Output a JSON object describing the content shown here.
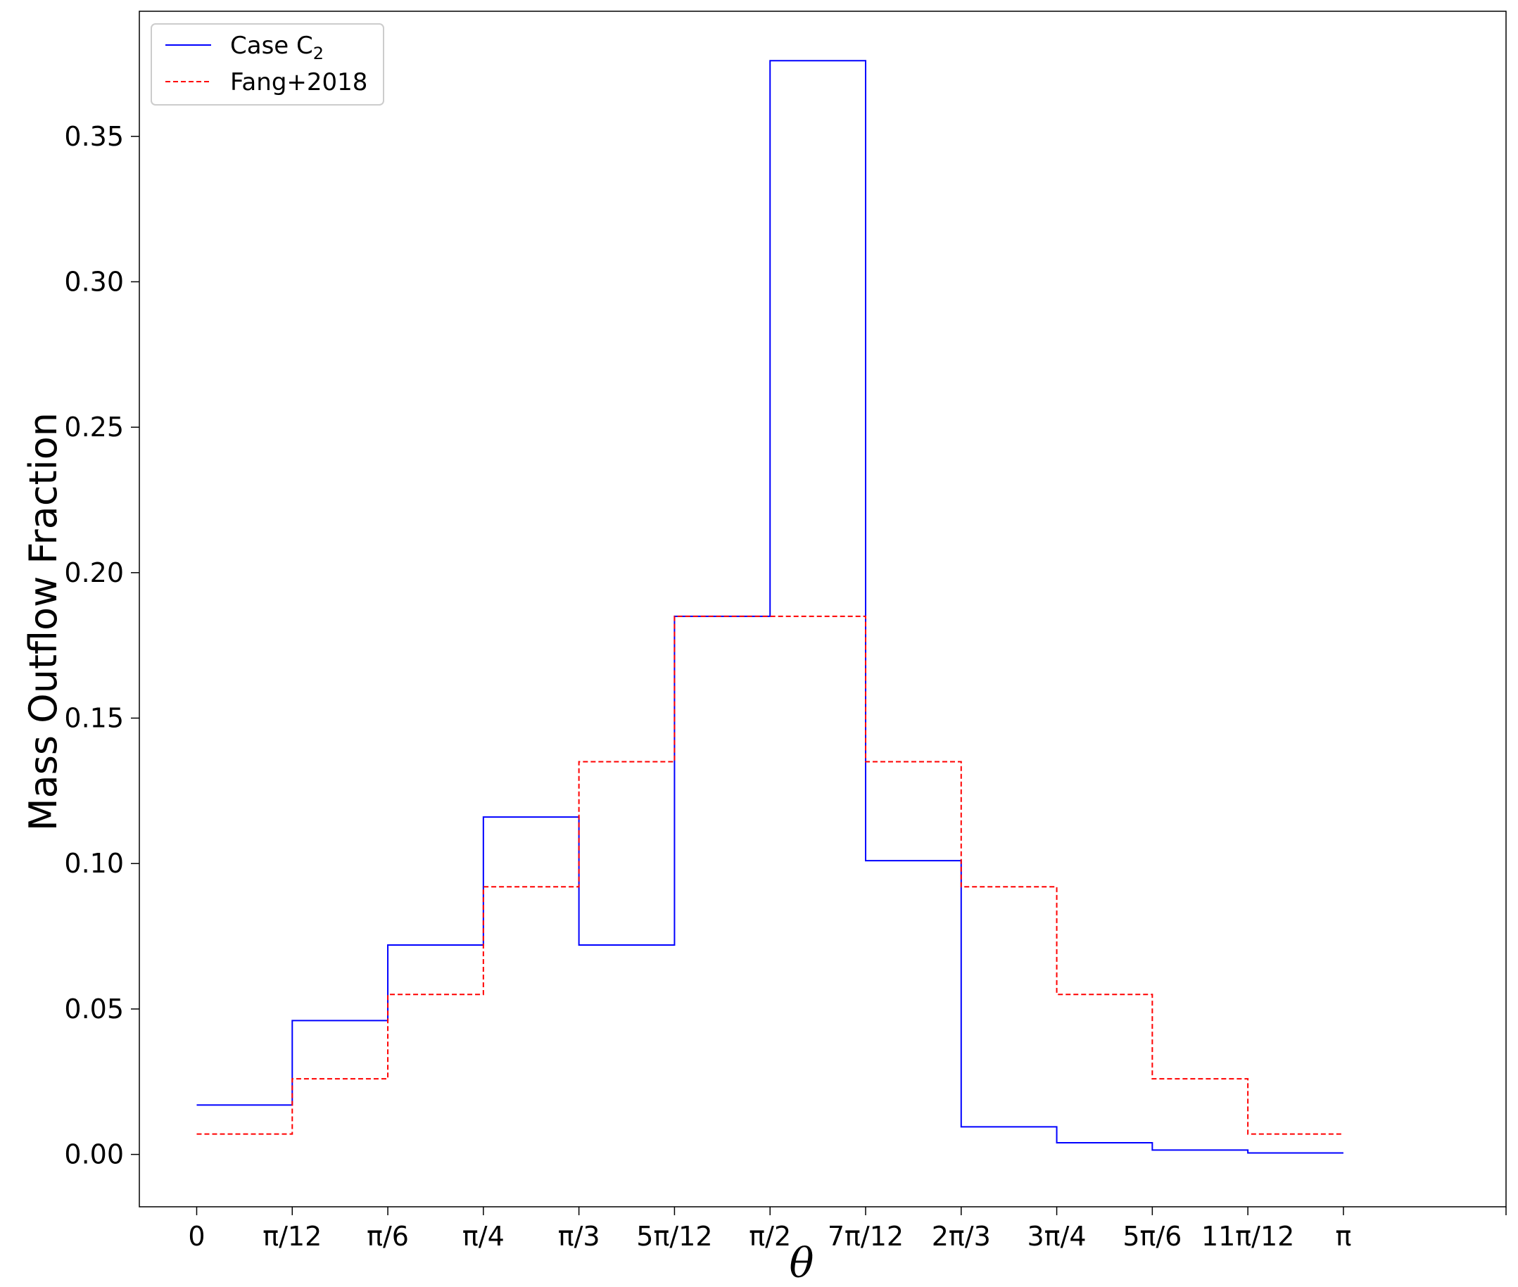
{
  "chart_data": {
    "type": "line",
    "step": "post",
    "xlabel": "θ",
    "ylabel": "Mass Outflow Fraction",
    "xlim": [
      -0.1571,
      3.5871
    ],
    "ylim": [
      -0.018,
      0.393
    ],
    "x_ticks": [
      {
        "value": 0.0,
        "label": "0"
      },
      {
        "value": 0.2618,
        "label": "π/12"
      },
      {
        "value": 0.5236,
        "label": "π/6"
      },
      {
        "value": 0.7854,
        "label": "π/4"
      },
      {
        "value": 1.0472,
        "label": "π/3"
      },
      {
        "value": 1.309,
        "label": "5π/12"
      },
      {
        "value": 1.5708,
        "label": "π/2"
      },
      {
        "value": 1.8326,
        "label": "7π/12"
      },
      {
        "value": 2.0944,
        "label": "2π/3"
      },
      {
        "value": 2.3562,
        "label": "3π/4"
      },
      {
        "value": 2.618,
        "label": "5π/6"
      },
      {
        "value": 2.8798,
        "label": "11π/12"
      },
      {
        "value": 3.1416,
        "label": "π"
      }
    ],
    "y_ticks": [
      {
        "value": 0.0,
        "label": "0.00"
      },
      {
        "value": 0.05,
        "label": "0.05"
      },
      {
        "value": 0.1,
        "label": "0.10"
      },
      {
        "value": 0.15,
        "label": "0.15"
      },
      {
        "value": 0.2,
        "label": "0.20"
      },
      {
        "value": 0.25,
        "label": "0.25"
      },
      {
        "value": 0.3,
        "label": "0.30"
      },
      {
        "value": 0.35,
        "label": "0.35"
      }
    ],
    "x": [
      0.0,
      0.2618,
      0.5236,
      0.7854,
      1.0472,
      1.309,
      1.5708,
      1.8326,
      2.0944,
      2.3562,
      2.618,
      2.8798,
      3.1416
    ],
    "series": [
      {
        "name": "Case C",
        "name_subscript": "2",
        "color": "#0000ff",
        "dash": "solid",
        "values": [
          0.017,
          0.046,
          0.072,
          0.116,
          0.072,
          0.185,
          0.376,
          0.101,
          0.0095,
          0.004,
          0.0015,
          0.0005,
          0.0005
        ]
      },
      {
        "name": "Fang+2018",
        "color": "#ff0000",
        "dash": "dashed",
        "values": [
          0.007,
          0.026,
          0.055,
          0.092,
          0.135,
          0.185,
          0.185,
          0.135,
          0.092,
          0.055,
          0.026,
          0.007,
          0.007
        ]
      }
    ],
    "legend_position": "top-left",
    "grid": false
  }
}
